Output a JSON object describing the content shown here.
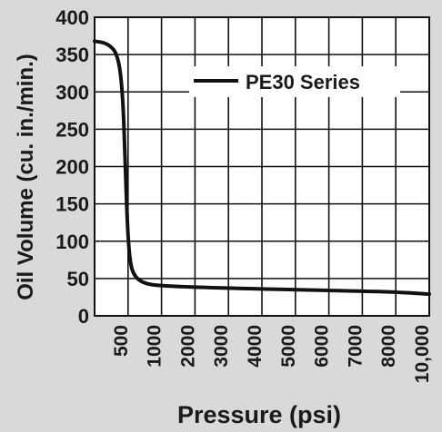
{
  "chart_data": {
    "type": "line",
    "title": "",
    "xlabel": "Pressure (psi)",
    "ylabel": "Oil Volume (cu. in./min.)",
    "x_categories": [
      "500",
      "1000",
      "2000",
      "3000",
      "4000",
      "5000",
      "6000",
      "7000",
      "8000",
      "10,000"
    ],
    "y_ticks": [
      "0",
      "50",
      "100",
      "150",
      "200",
      "250",
      "300",
      "350",
      "400"
    ],
    "ylim": [
      0,
      400
    ],
    "grid": true,
    "legend_position": "top-right",
    "series": [
      {
        "name": "PE30 Series",
        "color": "#111111",
        "points": [
          {
            "x": 0,
            "y": 368
          },
          {
            "x": 200,
            "y": 365
          },
          {
            "x": 350,
            "y": 350
          },
          {
            "x": 420,
            "y": 300
          },
          {
            "x": 460,
            "y": 200
          },
          {
            "x": 490,
            "y": 120
          },
          {
            "x": 530,
            "y": 70
          },
          {
            "x": 600,
            "y": 52
          },
          {
            "x": 750,
            "y": 43
          },
          {
            "x": 1000,
            "y": 40
          },
          {
            "x": 3000,
            "y": 37
          },
          {
            "x": 6000,
            "y": 34
          },
          {
            "x": 8000,
            "y": 32
          },
          {
            "x": 10000,
            "y": 29
          }
        ]
      }
    ]
  }
}
